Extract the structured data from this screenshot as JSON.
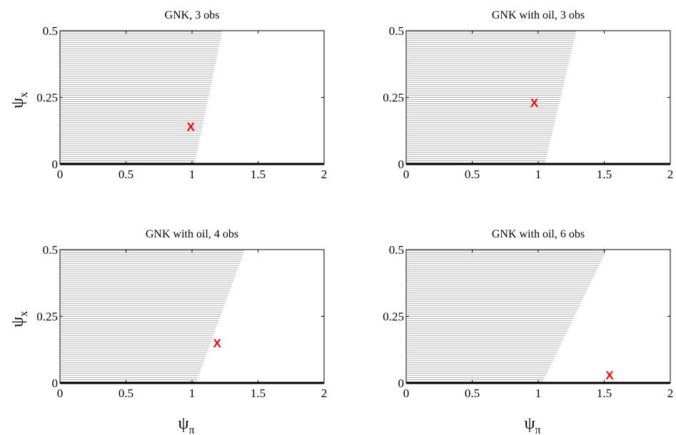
{
  "chart_data": [
    {
      "type": "area",
      "title": "GNK, 3 obs",
      "xlabel": "",
      "ylabel": "ψx",
      "ylabel_main": "ψ",
      "ylabel_sub": "x",
      "xlim": [
        0,
        2
      ],
      "ylim": [
        0,
        0.5
      ],
      "xticks": [
        0,
        0.5,
        1,
        1.5,
        2
      ],
      "xtick_labels": [
        "0",
        "0.5",
        "1",
        "1.5",
        "2"
      ],
      "yticks": [
        0,
        0.25,
        0.5
      ],
      "ytick_labels": [
        "0",
        "0.25",
        "0.5"
      ],
      "region_boundary": [
        [
          1.02,
          0.0
        ],
        [
          1.23,
          0.5
        ]
      ],
      "marker": {
        "x": 0.99,
        "y": 0.14,
        "label": "X"
      }
    },
    {
      "type": "area",
      "title": "GNK with oil, 3 obs",
      "xlabel": "",
      "ylabel": "",
      "xlim": [
        0,
        2
      ],
      "ylim": [
        0,
        0.5
      ],
      "xticks": [
        0,
        0.5,
        1,
        1.5,
        2
      ],
      "xtick_labels": [
        "0",
        "0.5",
        "1",
        "1.5",
        "2"
      ],
      "yticks": [
        0,
        0.25,
        0.5
      ],
      "ytick_labels": [
        "0",
        "0.25",
        "0.5"
      ],
      "region_boundary": [
        [
          1.05,
          0.0
        ],
        [
          1.29,
          0.5
        ]
      ],
      "marker": {
        "x": 0.97,
        "y": 0.23,
        "label": "X"
      }
    },
    {
      "type": "area",
      "title": "GNK with oil, 4 obs",
      "xlabel": "ψπ",
      "xlabel_main": "ψ",
      "xlabel_sub": "π",
      "ylabel": "ψx",
      "ylabel_main": "ψ",
      "ylabel_sub": "x",
      "xlim": [
        0,
        2
      ],
      "ylim": [
        0,
        0.5
      ],
      "xticks": [
        0,
        0.5,
        1,
        1.5,
        2
      ],
      "xtick_labels": [
        "0",
        "0.5",
        "1",
        "1.5",
        "2"
      ],
      "yticks": [
        0,
        0.25,
        0.5
      ],
      "ytick_labels": [
        "0",
        "0.25",
        "0.5"
      ],
      "region_boundary": [
        [
          1.03,
          0.0
        ],
        [
          1.4,
          0.5
        ]
      ],
      "marker": {
        "x": 1.19,
        "y": 0.15,
        "label": "X"
      }
    },
    {
      "type": "area",
      "title": "GNK with oil, 6 obs",
      "xlabel": "ψπ",
      "xlabel_main": "ψ",
      "xlabel_sub": "π",
      "ylabel": "",
      "xlim": [
        0,
        2
      ],
      "ylim": [
        0,
        0.5
      ],
      "xticks": [
        0,
        0.5,
        1,
        1.5,
        2
      ],
      "xtick_labels": [
        "0",
        "0.5",
        "1",
        "1.5",
        "2"
      ],
      "yticks": [
        0,
        0.25,
        0.5
      ],
      "ytick_labels": [
        "0",
        "0.25",
        "0.5"
      ],
      "region_boundary": [
        [
          1.03,
          0.0
        ],
        [
          1.52,
          0.5
        ]
      ],
      "marker": {
        "x": 1.54,
        "y": 0.03,
        "label": "X"
      }
    }
  ]
}
